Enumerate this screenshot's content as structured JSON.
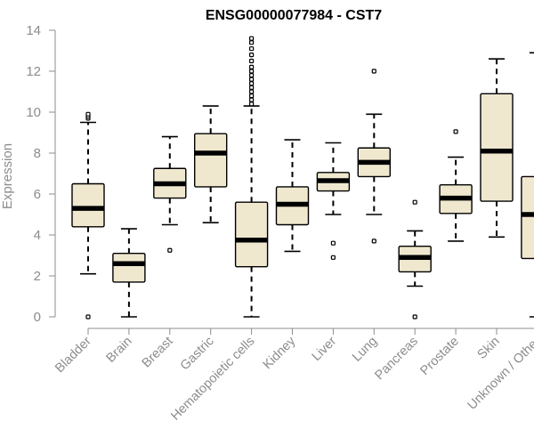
{
  "chart_data": {
    "type": "boxplot",
    "title": "ENSG00000077984 - CST7",
    "xlabel": "",
    "ylabel": "Expression",
    "ylim": [
      0,
      14
    ],
    "yticks": [
      0,
      2,
      4,
      6,
      8,
      10,
      12,
      14
    ],
    "grid": false,
    "colors": {
      "box_fill": "#efe8cf",
      "box_stroke": "#000000",
      "median": "#000000",
      "axis": "#8c8c8c",
      "text_muted": "#8c8c8c",
      "title": "#000000"
    },
    "categories": [
      "Bladder",
      "Brain",
      "Breast",
      "Gastric",
      "Hematopoietic cells",
      "Kidney",
      "Liver",
      "Lung",
      "Pancreas",
      "Prostate",
      "Skin",
      "Unknown / Other"
    ],
    "boxes": [
      {
        "label": "Bladder",
        "whisker_low": 2.1,
        "q1": 4.4,
        "median": 5.3,
        "q3": 6.5,
        "whisker_high": 9.5,
        "outliers": [
          0.0,
          9.7,
          9.8,
          9.9
        ]
      },
      {
        "label": "Brain",
        "whisker_low": 0.0,
        "q1": 1.7,
        "median": 2.6,
        "q3": 3.1,
        "whisker_high": 4.3,
        "outliers": []
      },
      {
        "label": "Breast",
        "whisker_low": 4.5,
        "q1": 5.8,
        "median": 6.5,
        "q3": 7.25,
        "whisker_high": 8.8,
        "outliers": [
          3.25
        ]
      },
      {
        "label": "Gastric",
        "whisker_low": 4.6,
        "q1": 6.35,
        "median": 8.0,
        "q3": 8.95,
        "whisker_high": 10.3,
        "outliers": []
      },
      {
        "label": "Hematopoietic cells",
        "whisker_low": 0.0,
        "q1": 2.45,
        "median": 3.75,
        "q3": 5.6,
        "whisker_high": 10.3,
        "outliers": [
          10.4,
          10.6,
          10.8,
          11.0,
          11.2,
          11.4,
          11.6,
          11.8,
          12.0,
          12.2,
          12.5,
          12.8,
          13.1,
          13.4,
          13.6
        ]
      },
      {
        "label": "Kidney",
        "whisker_low": 3.2,
        "q1": 4.5,
        "median": 5.5,
        "q3": 6.35,
        "whisker_high": 8.65,
        "outliers": []
      },
      {
        "label": "Liver",
        "whisker_low": 5.0,
        "q1": 6.15,
        "median": 6.65,
        "q3": 7.05,
        "whisker_high": 8.5,
        "outliers": [
          3.6,
          2.9
        ]
      },
      {
        "label": "Lung",
        "whisker_low": 5.0,
        "q1": 6.85,
        "median": 7.55,
        "q3": 8.25,
        "whisker_high": 9.9,
        "outliers": [
          12.0,
          3.7
        ]
      },
      {
        "label": "Pancreas",
        "whisker_low": 1.5,
        "q1": 2.2,
        "median": 2.9,
        "q3": 3.45,
        "whisker_high": 4.2,
        "outliers": [
          5.6,
          0.0
        ]
      },
      {
        "label": "Prostate",
        "whisker_low": 3.7,
        "q1": 5.05,
        "median": 5.8,
        "q3": 6.45,
        "whisker_high": 7.8,
        "outliers": [
          9.05
        ]
      },
      {
        "label": "Skin",
        "whisker_low": 3.9,
        "q1": 5.65,
        "median": 8.1,
        "q3": 10.9,
        "whisker_high": 12.6,
        "outliers": []
      },
      {
        "label": "Unknown / Other",
        "whisker_low": 0.0,
        "q1": 2.85,
        "median": 5.0,
        "q3": 6.85,
        "whisker_high": 12.9,
        "outliers": []
      }
    ]
  }
}
